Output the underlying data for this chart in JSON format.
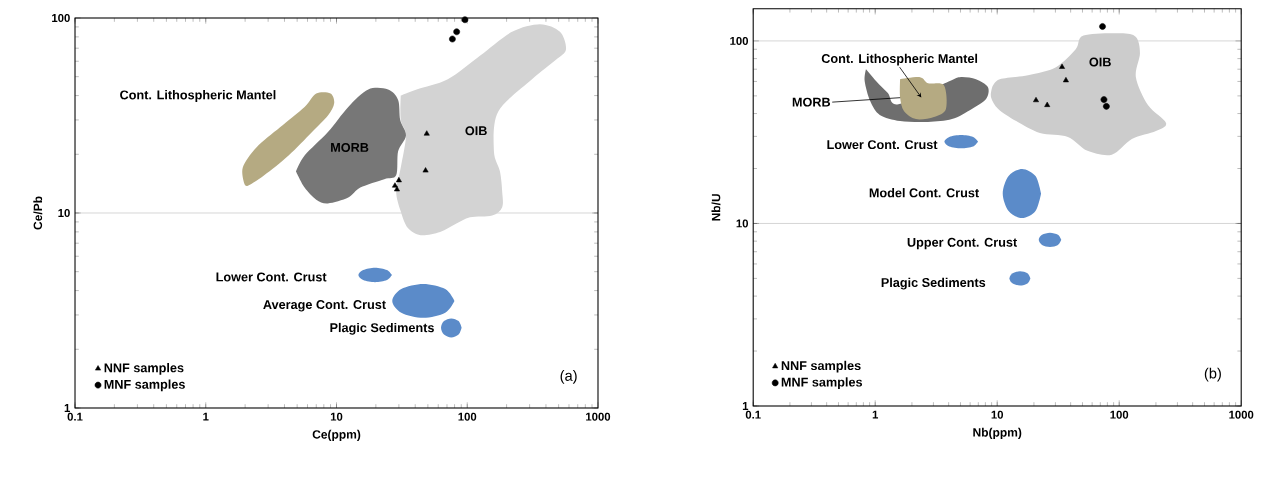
{
  "chart_data": [
    {
      "type": "scatter",
      "xlabel": "Ce(ppm)",
      "ylabel": "Ce/Pb",
      "log": "xy",
      "xlim": [
        0.1,
        1000
      ],
      "ylim": [
        1,
        100
      ],
      "xticks": [
        0.1,
        1,
        10,
        100,
        1000
      ],
      "yticks": [
        1,
        10,
        100
      ],
      "grid": "y",
      "legend": "bottom left",
      "series": [
        {
          "type": "area",
          "name": "OIB",
          "color": "#d3d3d3",
          "x": [
            31,
            41,
            71,
            125,
            220,
            360,
            512,
            569,
            477,
            313,
            172,
            160,
            178,
            185,
            185,
            155,
            105,
            82,
            62,
            44,
            35,
            31,
            28.6,
            31,
            34,
            31
          ],
          "values": [
            40,
            43,
            48.5,
            64,
            85,
            93,
            85,
            69,
            61,
            48.5,
            33,
            20.7,
            16.3,
            12.9,
            10.7,
            9.7,
            9.5,
            8.8,
            8.0,
            7.7,
            8.4,
            10.2,
            12.9,
            17.1,
            25,
            30
          ]
        },
        {
          "type": "area",
          "name": "MORB",
          "color": "#777777",
          "x": [
            4.9,
            5.7,
            8.6,
            12.3,
            17.5,
            24.8,
            29.6,
            30.7,
            34,
            29.6,
            28.6,
            23.2,
            15.2,
            12.3,
            8.6,
            7.0,
            5.7
          ],
          "values": [
            16.3,
            19.7,
            26,
            35,
            43,
            43,
            38,
            30,
            25,
            20.7,
            15.6,
            14.9,
            13.5,
            12.0,
            11.2,
            11.7,
            13.5
          ]
        },
        {
          "type": "area",
          "name": "Cont. Lithospheric Mantel",
          "color": "#b5aa82",
          "x": [
            1.97,
            1.92,
            2.44,
            3.7,
            5.7,
            7.0,
            9.0,
            9.6,
            8.6,
            6.5,
            4.3,
            2.8,
            2.1
          ],
          "values": [
            14.2,
            17.1,
            21.7,
            27.5,
            35,
            41,
            41,
            36.5,
            31.6,
            26,
            19.7,
            15.6,
            13.8
          ]
        },
        {
          "type": "area",
          "name": "Lower Cont. Crust",
          "color": "#5b8bc9",
          "x": [
            26.5,
            24.3,
            19.7,
            16.0,
            14.7,
            16.0,
            19.7,
            24.3
          ],
          "values": [
            4.81,
            5.1,
            5.24,
            5.1,
            4.81,
            4.53,
            4.42,
            4.53
          ]
        },
        {
          "type": "area",
          "name": "Average Cont. Crust",
          "color": "#5b8bc9",
          "x": [
            79.8,
            67.9,
            46.1,
            31.3,
            26.7,
            31.3,
            46.1,
            67.9
          ],
          "values": [
            3.54,
            4.07,
            4.32,
            4.07,
            3.54,
            3.08,
            2.9,
            3.08
          ]
        },
        {
          "type": "area",
          "name": "Plagic Sediments",
          "color": "#5b8bc9",
          "x": [
            90.6,
            85.9,
            75.5,
            66.4,
            63.0,
            66.4,
            75.5,
            85.9
          ],
          "values": [
            2.58,
            2.79,
            2.88,
            2.79,
            2.58,
            2.38,
            2.3,
            2.38
          ]
        },
        {
          "name": "NNF samples",
          "marker": "triangle",
          "color": "#000000",
          "x": [
            49,
            48,
            30,
            28,
            29
          ],
          "values": [
            25.5,
            16.5,
            14.7,
            13.8,
            13.2
          ]
        },
        {
          "name": "MNF samples",
          "marker": "circle",
          "color": "#000000",
          "x": [
            77,
            83,
            96
          ],
          "values": [
            78,
            85,
            98
          ]
        }
      ],
      "annotations": [
        "(a)"
      ]
    },
    {
      "type": "scatter",
      "xlabel": "Nb(ppm)",
      "ylabel": "Nb/U",
      "log": "xy",
      "xlim": [
        0.1,
        1000
      ],
      "ylim": [
        1,
        150
      ],
      "xticks": [
        0.1,
        1,
        10,
        100,
        1000
      ],
      "yticks": [
        1,
        10,
        100
      ],
      "grid": "y",
      "legend": "bottom left",
      "series": [
        {
          "type": "area",
          "name": "OIB",
          "color": "#cccccc",
          "x": [
            9.1,
            10.5,
            17.9,
            30.3,
            44,
            51,
            102,
            137,
            148,
            137,
            172,
            242,
            200,
            127,
            87,
            55,
            38,
            22.4,
            14.3,
            10.2,
            8.9
          ],
          "values": [
            55.8,
            61.7,
            64.9,
            71.8,
            90,
            107,
            110,
            105,
            85.5,
            63.3,
            44.5,
            35.5,
            32.1,
            29,
            23.8,
            25,
            29.8,
            31.3,
            36.4,
            42.4,
            49.2
          ]
        },
        {
          "type": "area",
          "name": "MORB",
          "color": "#6e6e6e",
          "x": [
            0.84,
            1.02,
            1.27,
            1.55,
            4.0,
            4.95,
            6.7,
            8.4,
            8.1,
            6.2,
            4.26,
            2.71,
            1.6,
            1.09,
            0.91,
            0.82
          ],
          "values": [
            70,
            60.2,
            51.8,
            45,
            60,
            63.3,
            61.7,
            55.8,
            48,
            42.4,
            37.3,
            36,
            36.4,
            39.3,
            46.8,
            60.2
          ]
        },
        {
          "type": "area",
          "name": "Cont. Lithospheric Mantel",
          "color": "#b5aa82",
          "x": [
            1.6,
            2.33,
            2.71,
            3.66,
            3.8,
            3.03,
            2.16,
            1.72,
            1.6
          ],
          "values": [
            61.7,
            63.3,
            58.7,
            57.2,
            42.4,
            38.3,
            37.3,
            41.3,
            49.2
          ]
        },
        {
          "type": "area",
          "name": "Lower Cont. Crust",
          "color": "#5b8bc9",
          "x": [
            6.97,
            6.35,
            5.07,
            4.05,
            3.69,
            4.05,
            5.07,
            6.35
          ],
          "values": [
            28.1,
            29.8,
            30.5,
            29.8,
            28.1,
            26.4,
            25.8,
            26.4
          ]
        },
        {
          "type": "area",
          "name": "Model Cont. Crust",
          "color": "#5b8bc9",
          "x": [
            22.9,
            20.6,
            16.0,
            12.4,
            11.1,
            12.4,
            16.0,
            20.6
          ],
          "values": [
            14.6,
            18.2,
            19.9,
            18.2,
            14.6,
            11.7,
            10.7,
            11.7
          ]
        },
        {
          "type": "area",
          "name": "Upper Cont. Crust",
          "color": "#5b8bc9",
          "x": [
            33.5,
            31.5,
            27.1,
            23.3,
            21.9,
            23.3,
            27.1,
            31.5
          ],
          "values": [
            8.13,
            8.66,
            8.89,
            8.66,
            8.13,
            7.62,
            7.43,
            7.62
          ]
        },
        {
          "type": "area",
          "name": "Plagic Sediments",
          "color": "#5b8bc9",
          "x": [
            18.7,
            17.7,
            15.4,
            13.4,
            12.6,
            13.4,
            15.4,
            17.7
          ],
          "values": [
            5.0,
            5.33,
            5.47,
            5.33,
            5.0,
            4.69,
            4.57,
            4.69
          ]
        },
        {
          "name": "NNF samples",
          "marker": "triangle",
          "color": "#000000",
          "x": [
            34,
            36.6,
            20.8,
            25.7
          ],
          "values": [
            72,
            60.8,
            47.3,
            44.5
          ]
        },
        {
          "name": "MNF samples",
          "marker": "circle",
          "color": "#000000",
          "x": [
            73,
            75,
            78.5
          ],
          "values": [
            120,
            47.7,
            43.8
          ]
        }
      ],
      "annotations": [
        "(b)"
      ]
    }
  ]
}
